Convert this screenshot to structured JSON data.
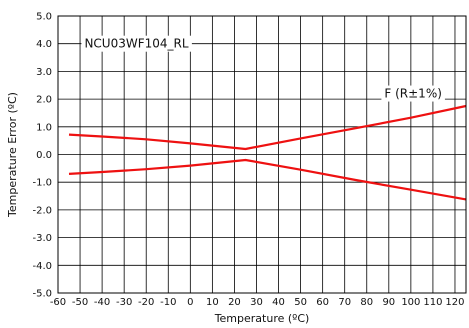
{
  "chart_data": {
    "type": "line",
    "title": "",
    "xlabel": "Temperature (ºC)",
    "ylabel": "Temperature Error (ºC)",
    "xlim": [
      -60,
      125
    ],
    "ylim": [
      -5.0,
      5.0
    ],
    "grid": true,
    "x_ticks": [
      -60,
      -50,
      -40,
      -30,
      -20,
      -10,
      0,
      10,
      20,
      30,
      40,
      50,
      60,
      70,
      80,
      90,
      100,
      110,
      120
    ],
    "x_tick_labels": [
      "-60",
      "-50",
      "-40",
      "-30",
      "-20",
      "-10",
      "0",
      "10",
      "20",
      "30",
      "40",
      "50",
      "60",
      "70",
      "80",
      "90",
      "100",
      "110",
      "120"
    ],
    "y_ticks": [
      5,
      4,
      3,
      2,
      1,
      0,
      -1,
      -2,
      -3,
      -4,
      -5
    ],
    "y_tick_labels": [
      "5.0",
      "4.0",
      "3.0",
      "2.0",
      "1.0",
      "0.0",
      "-1.0",
      "-2.0",
      "-3.0",
      "-4.0",
      "-5.0"
    ],
    "annotations": [
      {
        "text": "NCU03WF104_RL",
        "x": -48,
        "y": 4.0
      },
      {
        "text": "F (R±1%)",
        "x": 88,
        "y": 2.2
      }
    ],
    "series": [
      {
        "color": "#ee1111",
        "x": [
          -55,
          -40,
          -20,
          0,
          25,
          50,
          75,
          100,
          125
        ],
        "y": [
          0.72,
          0.65,
          0.55,
          0.4,
          0.2,
          0.58,
          0.95,
          1.33,
          1.75
        ]
      },
      {
        "color": "#ee1111",
        "x": [
          -55,
          -40,
          -20,
          0,
          25,
          50,
          75,
          100,
          125
        ],
        "y": [
          -0.7,
          -0.63,
          -0.53,
          -0.4,
          -0.2,
          -0.55,
          -0.92,
          -1.27,
          -1.62
        ]
      }
    ]
  }
}
